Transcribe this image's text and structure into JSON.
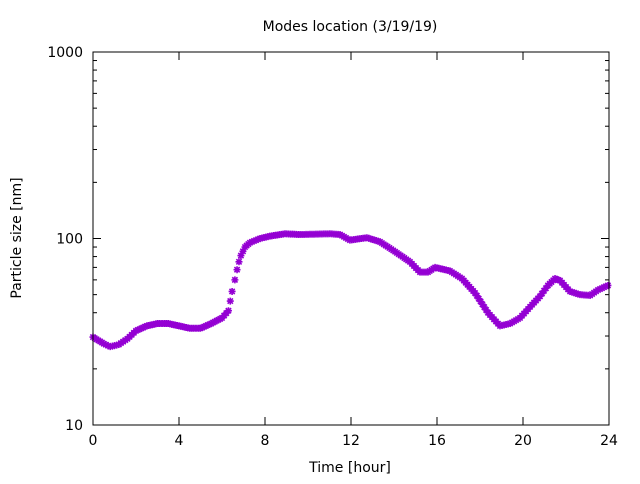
{
  "chart_data": {
    "type": "scatter",
    "title": "Modes location (3/19/19)",
    "xlabel": "Time [hour]",
    "ylabel": "Particle size [nm]",
    "xlim": [
      0,
      24
    ],
    "ylim": [
      10,
      1000
    ],
    "yscale": "log",
    "xticks": [
      "0",
      "4",
      "8",
      "12",
      "16",
      "20",
      "24"
    ],
    "yticks": [
      "10",
      "100",
      "1000"
    ],
    "grid": false,
    "marker": "star",
    "color": "#9400d3",
    "series": [
      {
        "name": "Mode",
        "x": [
          0,
          0.5,
          0.8,
          1.2,
          1.6,
          2.0,
          2.5,
          3.0,
          3.5,
          4.0,
          4.5,
          5.0,
          5.5,
          6.0,
          6.3,
          6.47,
          6.6,
          6.7,
          6.79,
          6.88,
          7.07,
          7.3,
          7.77,
          8.23,
          8.93,
          9.63,
          11.02,
          11.49,
          11.95,
          12.74,
          13.35,
          14.05,
          14.74,
          15.21,
          15.58,
          15.91,
          16.6,
          17.16,
          17.77,
          18.37,
          18.93,
          19.4,
          19.86,
          20.33,
          20.79,
          21.16,
          21.49,
          21.72,
          22.19,
          22.65,
          23.12,
          23.49,
          23.95
        ],
        "y": [
          29.6,
          27.3,
          26.3,
          27,
          29,
          32,
          34,
          35,
          35,
          34,
          33,
          33,
          35,
          37.5,
          41,
          52,
          60,
          68,
          75,
          81,
          90,
          95,
          100,
          103,
          106,
          105,
          106,
          105,
          98,
          101,
          96,
          85,
          75,
          66,
          66,
          70,
          67,
          61,
          51,
          40,
          34,
          35,
          37.5,
          43,
          49,
          56,
          61,
          59.5,
          52,
          50,
          49.5,
          53,
          56
        ]
      }
    ]
  }
}
